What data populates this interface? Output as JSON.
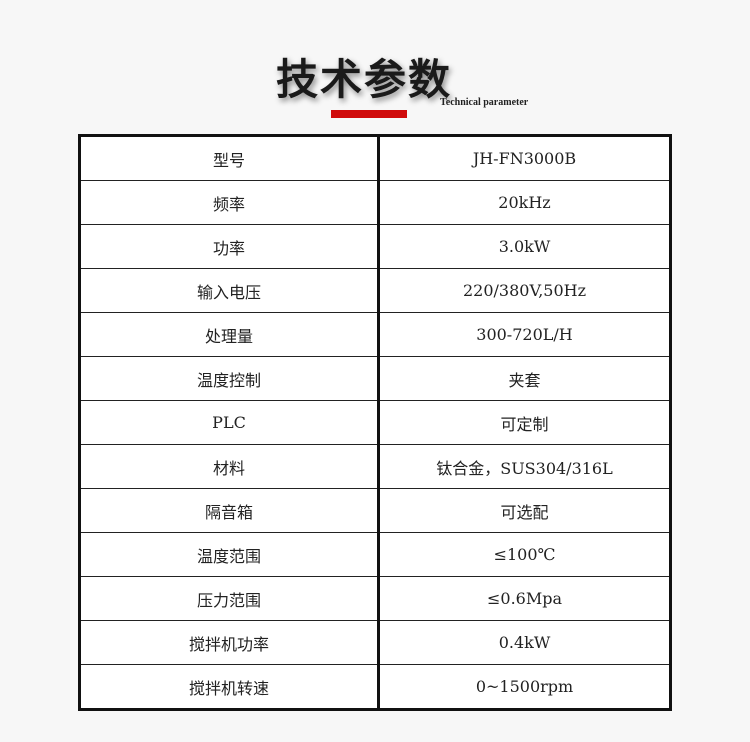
{
  "header": {
    "title": "技术参数",
    "subtitle": "Technical parameter",
    "accent_color": "#d00b0b"
  },
  "rows": [
    {
      "label": "型号",
      "value": "JH-FN3000B"
    },
    {
      "label": "频率",
      "value": "20kHz"
    },
    {
      "label": "功率",
      "value": "3.0kW"
    },
    {
      "label": "输入电压",
      "value": "220/380V,50Hz"
    },
    {
      "label": "处理量",
      "value": "300-720L/H"
    },
    {
      "label": "温度控制",
      "value": "夹套"
    },
    {
      "label": "PLC",
      "value": "可定制"
    },
    {
      "label": "材料",
      "value": "钛合金，SUS304/316L"
    },
    {
      "label": "隔音箱",
      "value": "可选配"
    },
    {
      "label": "温度范围",
      "value": "≤100℃"
    },
    {
      "label": "压力范围",
      "value": "≤0.6Mpa"
    },
    {
      "label": "搅拌机功率",
      "value": "0.4kW"
    },
    {
      "label": "搅拌机转速",
      "value": "0~1500rpm"
    }
  ]
}
